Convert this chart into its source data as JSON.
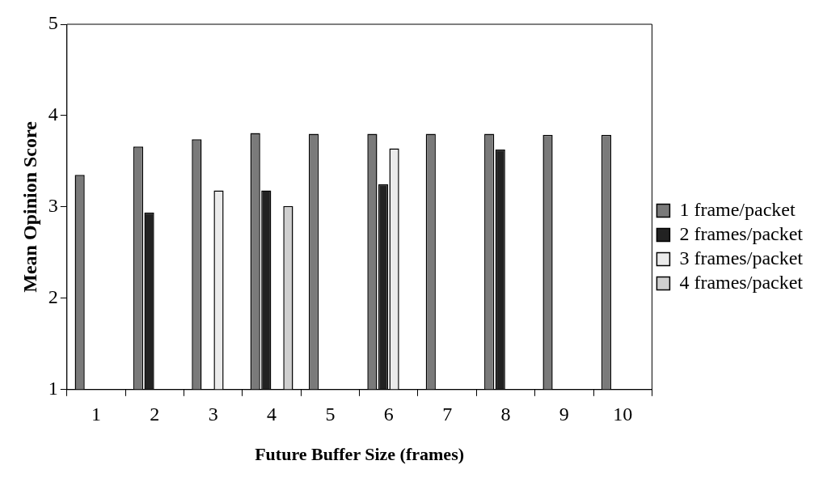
{
  "chart_data": {
    "type": "bar",
    "xlabel": "Future Buffer Size (frames)",
    "ylabel": "Mean Opinion Score",
    "categories": [
      "1",
      "2",
      "3",
      "4",
      "5",
      "6",
      "7",
      "8",
      "9",
      "10"
    ],
    "series": [
      {
        "name": "1 frame/packet",
        "color": "#7a7a7a",
        "values": [
          3.35,
          3.66,
          3.74,
          3.81,
          3.8,
          3.8,
          3.8,
          3.8,
          3.79,
          3.79
        ]
      },
      {
        "name": "2 frames/packet",
        "color": "#222222",
        "values": [
          null,
          2.94,
          null,
          3.18,
          null,
          3.25,
          null,
          3.63,
          null,
          null
        ]
      },
      {
        "name": "3 frames/packet",
        "color": "#ebebeb",
        "values": [
          null,
          null,
          3.18,
          null,
          null,
          3.64,
          null,
          null,
          null,
          null
        ]
      },
      {
        "name": "4 frames/packet",
        "color": "#cfcfcf",
        "values": [
          null,
          null,
          null,
          3.01,
          null,
          null,
          null,
          null,
          null,
          null
        ]
      }
    ],
    "ylim": [
      1,
      5
    ],
    "yticks": [
      1,
      2,
      3,
      4,
      5
    ],
    "grid": false,
    "legend": "right"
  }
}
